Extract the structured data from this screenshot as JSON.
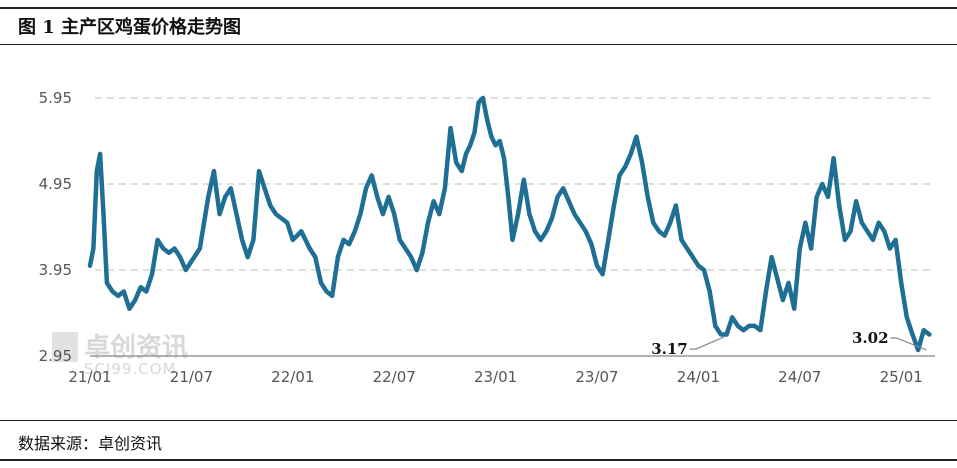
{
  "title": "图 1  主产区鸡蛋价格走势图",
  "source": "数据来源：卓创资讯",
  "watermark": {
    "name": "卓创资讯",
    "url": "SCI99.COM"
  },
  "colors": {
    "line": "#1f6e94",
    "grid": "#cccccc",
    "axis": "#999999",
    "annotation_leader": "#888888"
  },
  "chart_data": {
    "type": "line",
    "title": "图 1  主产区鸡蛋价格走势图",
    "xlabel": "",
    "ylabel": "",
    "x_ticks": [
      "21/01",
      "21/07",
      "22/01",
      "22/07",
      "23/01",
      "23/07",
      "24/01",
      "24/07",
      "25/01"
    ],
    "y_ticks": [
      "5.95",
      "4.95",
      "3.95",
      "2.95"
    ],
    "ylim": [
      2.95,
      5.95
    ],
    "grid": "horizontal dashed",
    "legend": "none",
    "annotations": [
      {
        "label": "3.17",
        "x": "24/02",
        "y": 3.17
      },
      {
        "label": "3.02",
        "x": "25/02",
        "y": 3.02
      }
    ],
    "series": [
      {
        "values": [
          [
            "21/01",
            4.0
          ],
          [
            "21/01",
            4.2
          ],
          [
            "21/01",
            5.1
          ],
          [
            "21/01",
            5.3
          ],
          [
            "21/01",
            4.6
          ],
          [
            "21/02",
            3.8
          ],
          [
            "21/02",
            3.7
          ],
          [
            "21/02",
            3.65
          ],
          [
            "21/03",
            3.7
          ],
          [
            "21/03",
            3.5
          ],
          [
            "21/03",
            3.6
          ],
          [
            "21/04",
            3.75
          ],
          [
            "21/04",
            3.7
          ],
          [
            "21/04",
            3.9
          ],
          [
            "21/05",
            4.3
          ],
          [
            "21/05",
            4.2
          ],
          [
            "21/05",
            4.15
          ],
          [
            "21/06",
            4.2
          ],
          [
            "21/06",
            4.1
          ],
          [
            "21/06",
            3.95
          ],
          [
            "21/07",
            4.05
          ],
          [
            "21/07",
            4.2
          ],
          [
            "21/08",
            4.8
          ],
          [
            "21/08",
            5.1
          ],
          [
            "21/08",
            4.6
          ],
          [
            "21/09",
            4.8
          ],
          [
            "21/09",
            4.9
          ],
          [
            "21/09",
            4.6
          ],
          [
            "21/10",
            4.3
          ],
          [
            "21/10",
            4.1
          ],
          [
            "21/10",
            4.3
          ],
          [
            "21/11",
            5.1
          ],
          [
            "21/11",
            4.9
          ],
          [
            "21/11",
            4.7
          ],
          [
            "21/12",
            4.6
          ],
          [
            "21/12",
            4.55
          ],
          [
            "21/12",
            4.5
          ],
          [
            "22/01",
            4.3
          ],
          [
            "22/01",
            4.4
          ],
          [
            "22/02",
            4.2
          ],
          [
            "22/02",
            4.1
          ],
          [
            "22/02",
            3.8
          ],
          [
            "22/03",
            3.7
          ],
          [
            "22/03",
            3.65
          ],
          [
            "22/03",
            4.1
          ],
          [
            "22/04",
            4.3
          ],
          [
            "22/04",
            4.25
          ],
          [
            "22/04",
            4.4
          ],
          [
            "22/05",
            4.6
          ],
          [
            "22/05",
            4.9
          ],
          [
            "22/05",
            5.05
          ],
          [
            "22/06",
            4.8
          ],
          [
            "22/06",
            4.6
          ],
          [
            "22/06",
            4.8
          ],
          [
            "22/07",
            4.6
          ],
          [
            "22/07",
            4.3
          ],
          [
            "22/07",
            4.2
          ],
          [
            "22/08",
            4.1
          ],
          [
            "22/08",
            3.95
          ],
          [
            "22/08",
            4.15
          ],
          [
            "22/09",
            4.5
          ],
          [
            "22/09",
            4.75
          ],
          [
            "22/09",
            4.6
          ],
          [
            "22/10",
            4.9
          ],
          [
            "22/10",
            5.6
          ],
          [
            "22/10",
            5.2
          ],
          [
            "22/11",
            5.1
          ],
          [
            "22/11",
            5.3
          ],
          [
            "22/11",
            5.4
          ],
          [
            "22/11",
            5.55
          ],
          [
            "22/12",
            5.9
          ],
          [
            "22/12",
            5.95
          ],
          [
            "22/12",
            5.7
          ],
          [
            "22/12",
            5.5
          ],
          [
            "23/01",
            5.4
          ],
          [
            "23/01",
            5.45
          ],
          [
            "23/01",
            5.25
          ],
          [
            "23/01",
            4.8
          ],
          [
            "23/02",
            4.3
          ],
          [
            "23/02",
            4.6
          ],
          [
            "23/02",
            5.0
          ],
          [
            "23/03",
            4.6
          ],
          [
            "23/03",
            4.4
          ],
          [
            "23/03",
            4.3
          ],
          [
            "23/04",
            4.4
          ],
          [
            "23/04",
            4.55
          ],
          [
            "23/04",
            4.8
          ],
          [
            "23/05",
            4.9
          ],
          [
            "23/05",
            4.75
          ],
          [
            "23/05",
            4.6
          ],
          [
            "23/06",
            4.5
          ],
          [
            "23/06",
            4.4
          ],
          [
            "23/06",
            4.25
          ],
          [
            "23/07",
            4.0
          ],
          [
            "23/07",
            3.9
          ],
          [
            "23/07",
            4.3
          ],
          [
            "23/08",
            4.7
          ],
          [
            "23/08",
            5.05
          ],
          [
            "23/08",
            5.15
          ],
          [
            "23/09",
            5.3
          ],
          [
            "23/09",
            5.5
          ],
          [
            "23/09",
            5.2
          ],
          [
            "23/10",
            4.8
          ],
          [
            "23/10",
            4.5
          ],
          [
            "23/10",
            4.4
          ],
          [
            "23/11",
            4.35
          ],
          [
            "23/11",
            4.5
          ],
          [
            "23/11",
            4.7
          ],
          [
            "23/12",
            4.3
          ],
          [
            "23/12",
            4.2
          ],
          [
            "23/12",
            4.1
          ],
          [
            "24/01",
            4.0
          ],
          [
            "24/01",
            3.95
          ],
          [
            "24/01",
            3.7
          ],
          [
            "24/02",
            3.3
          ],
          [
            "24/02",
            3.2
          ],
          [
            "24/02",
            3.2
          ],
          [
            "24/03",
            3.4
          ],
          [
            "24/03",
            3.3
          ],
          [
            "24/03",
            3.25
          ],
          [
            "24/04",
            3.3
          ],
          [
            "24/04",
            3.3
          ],
          [
            "24/04",
            3.25
          ],
          [
            "24/05",
            3.7
          ],
          [
            "24/05",
            4.1
          ],
          [
            "24/05",
            3.85
          ],
          [
            "24/06",
            3.6
          ],
          [
            "24/06",
            3.8
          ],
          [
            "24/06",
            3.5
          ],
          [
            "24/07",
            4.2
          ],
          [
            "24/07",
            4.5
          ],
          [
            "24/07",
            4.2
          ],
          [
            "24/08",
            4.8
          ],
          [
            "24/08",
            4.95
          ],
          [
            "24/08",
            4.8
          ],
          [
            "24/09",
            5.25
          ],
          [
            "24/09",
            4.7
          ],
          [
            "24/09",
            4.3
          ],
          [
            "24/10",
            4.4
          ],
          [
            "24/10",
            4.75
          ],
          [
            "24/10",
            4.5
          ],
          [
            "24/11",
            4.4
          ],
          [
            "24/11",
            4.3
          ],
          [
            "24/11",
            4.5
          ],
          [
            "24/12",
            4.4
          ],
          [
            "24/12",
            4.2
          ],
          [
            "24/12",
            4.3
          ],
          [
            "25/01",
            3.8
          ],
          [
            "25/01",
            3.4
          ],
          [
            "25/01",
            3.2
          ],
          [
            "25/02",
            3.02
          ],
          [
            "25/02",
            3.25
          ],
          [
            "25/02",
            3.2
          ]
        ]
      }
    ]
  }
}
